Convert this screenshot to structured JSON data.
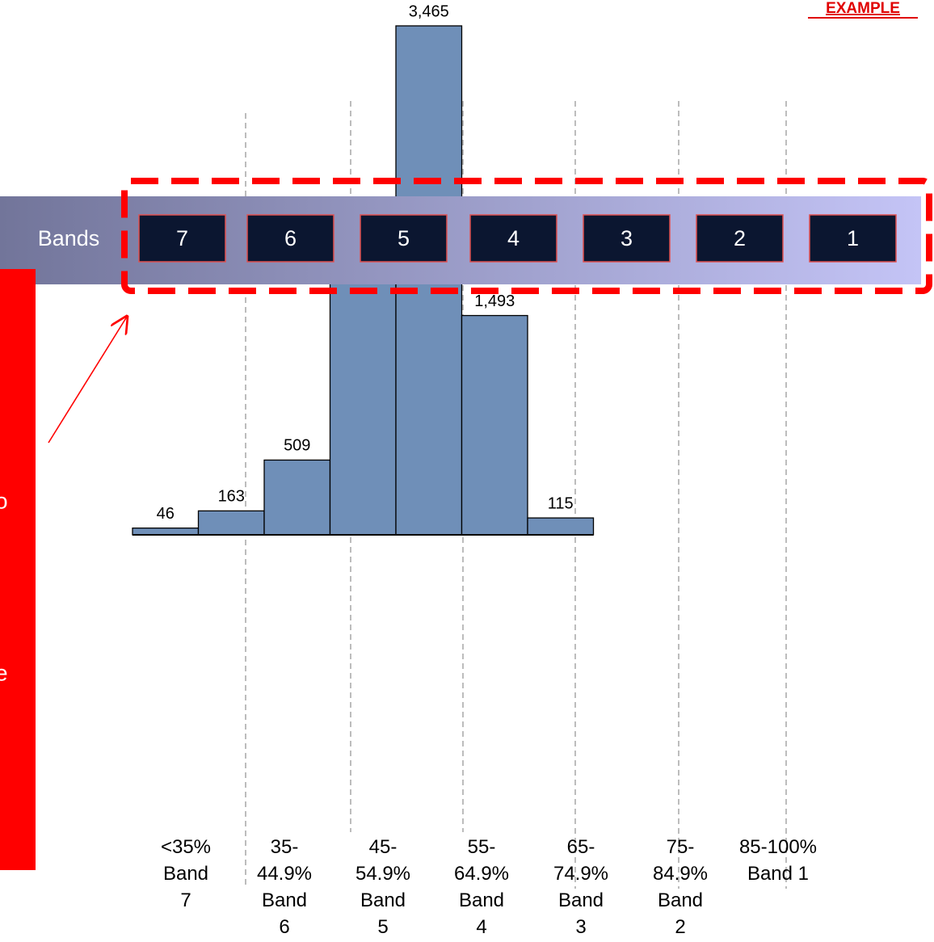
{
  "chart_data": {
    "type": "bar",
    "categories": [
      "<35%\nBand\n7",
      "35-\n44.9%\nBand\n6",
      "45-\n54.9%\nBand\n5",
      "55-\n64.9%\nBand\n4",
      "65-\n74.9%\nBand\n3",
      "75-\n84.9%\nBand\n2",
      "85-100%\nBand 1"
    ],
    "values": [
      46,
      163,
      509,
      2000,
      3465,
      1493,
      115
    ],
    "value_labels": [
      "46",
      "163",
      "509",
      null,
      "3,465",
      "1,493",
      "115"
    ],
    "color": "#6f8fb8"
  },
  "badge": "EXAMPLE",
  "bands": {
    "label": "Bands",
    "items": [
      "7",
      "6",
      "5",
      "4",
      "3",
      "2",
      "1"
    ]
  },
  "callout_fragments": [
    "o",
    "e"
  ]
}
